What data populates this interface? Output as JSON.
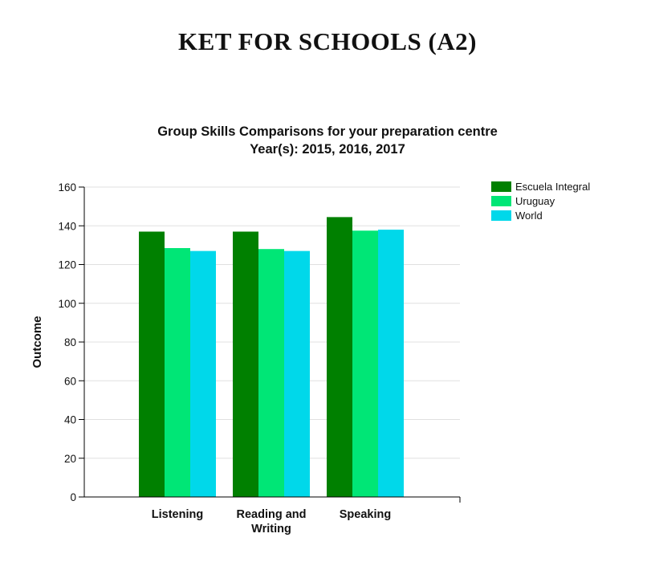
{
  "page": {
    "heading": "KET FOR SCHOOLS (A2)"
  },
  "chart_data": {
    "type": "bar",
    "title": "Group Skills Comparisons for your preparation centre",
    "subtitle": "Year(s): 2015, 2016, 2017",
    "ylabel": "Outcome",
    "xlabel": "",
    "ylim": [
      0,
      160
    ],
    "yticks": [
      0,
      20,
      40,
      60,
      80,
      100,
      120,
      140,
      160
    ],
    "categories": [
      [
        "Listening"
      ],
      [
        "Reading and",
        "Writing"
      ],
      [
        "Speaking"
      ]
    ],
    "series": [
      {
        "name": "Escuela Integral",
        "color": "#008000",
        "values": [
          137,
          137,
          144.5
        ]
      },
      {
        "name": "Uruguay",
        "color": "#00e676",
        "values": [
          128.5,
          128,
          137.5
        ]
      },
      {
        "name": "World",
        "color": "#00d8ea",
        "values": [
          127,
          127,
          138
        ]
      }
    ],
    "grid": true,
    "legend_position": "right"
  }
}
